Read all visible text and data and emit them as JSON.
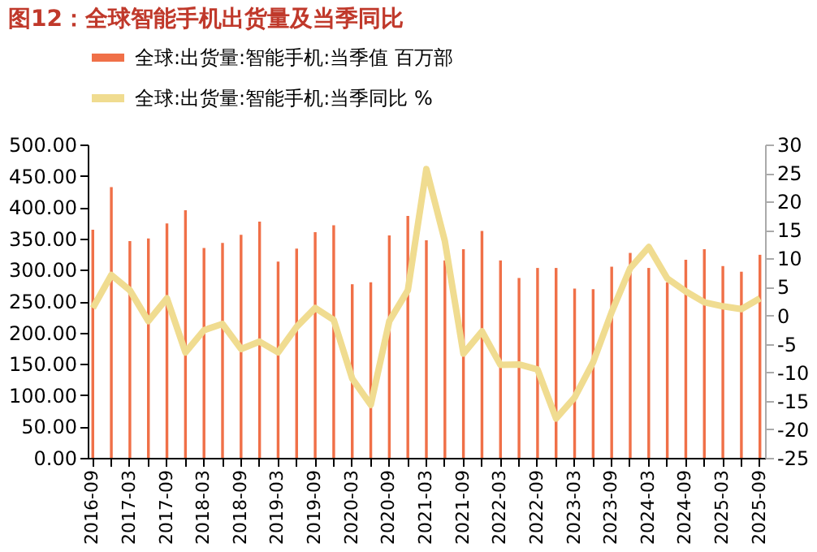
{
  "chart_data": {
    "type": "bar",
    "title": "图12：全球智能手机出货量及当季同比",
    "categories": [
      "2016-09",
      null,
      "2017-03",
      null,
      "2017-09",
      null,
      "2018-03",
      null,
      "2018-09",
      null,
      "2019-03",
      null,
      "2019-09",
      null,
      "2020-03",
      null,
      "2020-09",
      null,
      "2021-03",
      null,
      "2021-09",
      null,
      "2022-03",
      null,
      "2022-09",
      null,
      "2023-03",
      null,
      "2023-09",
      null,
      "2024-03",
      null,
      "2024-09",
      null,
      "2025-03",
      null,
      "2025-09"
    ],
    "series": [
      {
        "name": "全球:出货量:智能手机:当季值 百万部",
        "color": "#f07048",
        "values": [
          364,
          432,
          346,
          350,
          374,
          395,
          335,
          343,
          356,
          377,
          313,
          334,
          360,
          371,
          277,
          280,
          355,
          386,
          347,
          315,
          333,
          362,
          315,
          287,
          303,
          303,
          270,
          269,
          305,
          327,
          303,
          280,
          316,
          333,
          306,
          297,
          324
        ]
      },
      {
        "name": "全球:出货量:智能手机:当季同比 %",
        "type": "line",
        "line_style": "solid",
        "axis": "y2",
        "color": "#f0dc90",
        "values": [
          1.3,
          7.1,
          4.4,
          -1.0,
          3.0,
          -6.5,
          -2.6,
          -1.5,
          -5.9,
          -4.6,
          -6.5,
          -2.0,
          1.3,
          -0.8,
          -11.1,
          -15.7,
          -1.0,
          4.4,
          25.7,
          13.0,
          -6.7,
          -2.8,
          -8.7,
          -8.6,
          -9.5,
          -18.1,
          -14.4,
          -8.2,
          0.6,
          8.3,
          12.0,
          6.5,
          4.2,
          2.3,
          1.6,
          1.1,
          3.0
        ]
      }
    ],
    "ylim": [
      0,
      500
    ],
    "yticks": [
      {
        "value": 0,
        "label": "0.00"
      },
      {
        "value": 50,
        "label": "50.00"
      },
      {
        "value": 100,
        "label": "100.00"
      },
      {
        "value": 150,
        "label": "150.00"
      },
      {
        "value": 200,
        "label": "200.00"
      },
      {
        "value": 250,
        "label": "250.00"
      },
      {
        "value": 300,
        "label": "300.00"
      },
      {
        "value": 350,
        "label": "350.00"
      },
      {
        "value": 400,
        "label": "400.00"
      },
      {
        "value": 450,
        "label": "450.00"
      },
      {
        "value": 500,
        "label": "500.00"
      }
    ],
    "y2lim": [
      -25,
      30
    ],
    "y2ticks": [
      -25,
      -20,
      -15,
      -10,
      -5,
      0,
      5,
      10,
      15,
      20,
      25,
      30
    ],
    "grid": false,
    "legend": "top"
  }
}
